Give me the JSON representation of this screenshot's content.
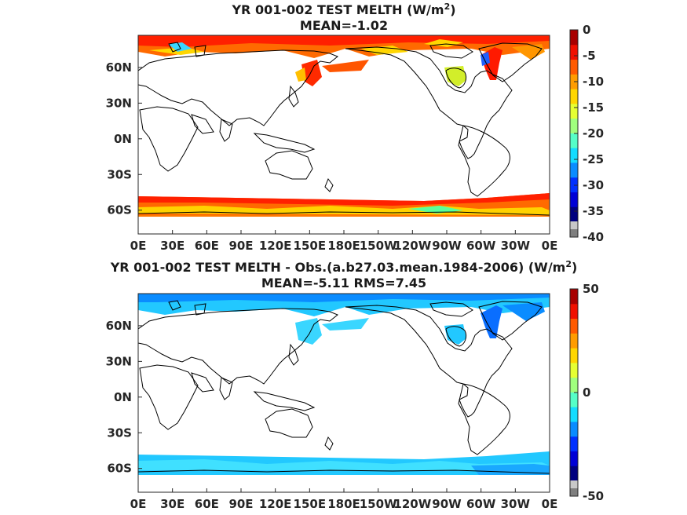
{
  "colors": {
    "frame": "#262626",
    "coast": "#000000",
    "scale_top_panel": [
      "#00007f",
      "#0000d6",
      "#0030ff",
      "#0a8cff",
      "#14dcff",
      "#56ffc8",
      "#a0ff7e",
      "#e6ff32",
      "#ffd600",
      "#ff9c00",
      "#ff5a00",
      "#f01000",
      "#a80000"
    ],
    "scale_bottom_panel": [
      "#00007f",
      "#0000d6",
      "#0030ff",
      "#0a8cff",
      "#14dcff",
      "#56ffc8",
      "#a0ff7e",
      "#e6ff32",
      "#ffd600",
      "#ff9c00",
      "#ff5a00",
      "#f01000",
      "#a80000"
    ]
  },
  "chart_data": [
    {
      "type": "heatmap",
      "projection": "global lat-lon, 0E to 360E",
      "title_main": "YR 001-002 TEST  MELTH (W/m",
      "title_sup": "2",
      "title_end": ")",
      "subtitle": "MEAN=-1.02",
      "x_tick_labels": [
        "0E",
        "30E",
        "60E",
        "90E",
        "120E",
        "150E",
        "180E",
        "150W",
        "120W",
        "90W",
        "60W",
        "30W",
        "0E"
      ],
      "y_tick_labels": [
        "60N",
        "30N",
        "0N",
        "30S",
        "60S"
      ],
      "y_tick_values": [
        60,
        30,
        0,
        -30,
        -60
      ],
      "lat_range": [
        -80,
        87
      ],
      "colorbar": {
        "range": [
          -40,
          0
        ],
        "tick_labels": [
          "0",
          "-5",
          "-10",
          "-15",
          "-20",
          "-25",
          "-30",
          "-35",
          "-40"
        ],
        "tick_values": [
          0,
          -5,
          -10,
          -15,
          -20,
          -25,
          -30,
          -35,
          -40
        ],
        "below_range_color": "#7f7f7f",
        "above_range_color": "#c8c8c8"
      },
      "description": "Nonzero values only over sea-ice regions: Arctic ocean band, Hudson Bay, Labrador/Greenland coasts, Sea of Okhotsk, and Southern Ocean band around Antarctica; mostly -2 to -12, locally down to -30."
    },
    {
      "type": "heatmap",
      "projection": "global lat-lon, 0E to 360E",
      "title_main": "YR 001-002 TEST MELTH - Obs.(a.b27.03.mean.1984-2006) (W/m",
      "title_sup": "2",
      "title_end": ")",
      "subtitle": "MEAN=-5.11 RMS=7.45",
      "x_tick_labels": [
        "0E",
        "30E",
        "60E",
        "90E",
        "120E",
        "150E",
        "180E",
        "150W",
        "120W",
        "90W",
        "60W",
        "30W",
        "0E"
      ],
      "y_tick_labels": [
        "60N",
        "30N",
        "0N",
        "30S",
        "60S"
      ],
      "y_tick_values": [
        60,
        30,
        0,
        -30,
        -60
      ],
      "lat_range": [
        -80,
        87
      ],
      "colorbar": {
        "range": [
          -50,
          50
        ],
        "tick_labels": [
          "50",
          "0",
          "-50"
        ],
        "tick_values": [
          50,
          0,
          -50
        ],
        "below_range_color": "#7f7f7f",
        "above_range_color": "#c8c8c8"
      },
      "description": "Difference field: negative values (about -5 to -15) over all sea-ice regions, deepest near Labrador/Greenland and Arctic coasts."
    }
  ]
}
